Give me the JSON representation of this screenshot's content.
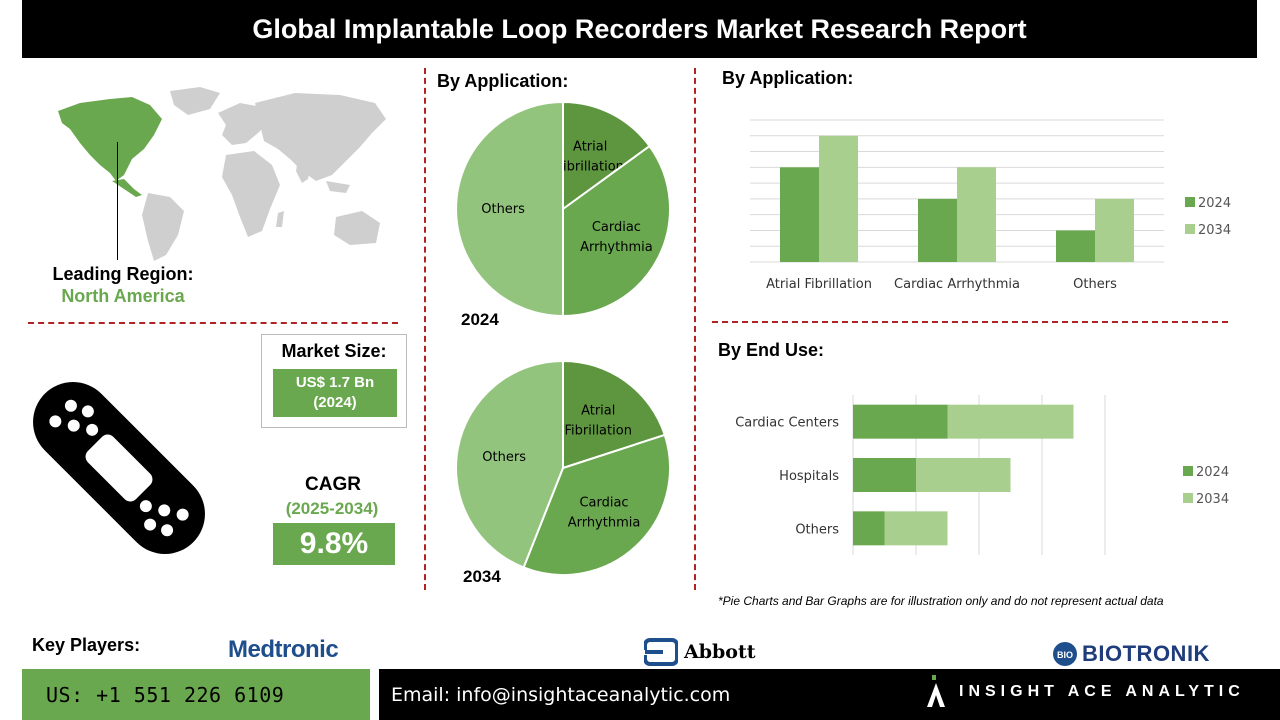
{
  "title": "Global Implantable Loop Recorders Market Research Report",
  "region": {
    "label": "Leading Region:",
    "name": "North America"
  },
  "market_size": {
    "title": "Market Size:",
    "value": "US$ 1.7 Bn",
    "year": "(2024)"
  },
  "cagr": {
    "label": "CAGR",
    "period": "(2025-2034)",
    "value": "9.8%"
  },
  "pie_section_title": "By Application:",
  "bar_app_title": "By Application:",
  "bar_enduse_title": "By End Use:",
  "disclaimer": "*Pie Charts and Bar Graphs are for illustration only and do not represent actual data",
  "footer": {
    "key_players_label": "Key Players:",
    "players": [
      "Medtronic",
      "Abbott",
      "BIOTRONIK"
    ],
    "phone": "US: +1 551 226 6109",
    "email": "Email: info@insightaceanalytic.com",
    "brand": "INSIGHT ACE ANALYTIC"
  },
  "colors": {
    "dark_green": "#5e9640",
    "mid_green": "#6aa84f",
    "light_green": "#a9cf8e",
    "pie_light": "#93c47d"
  },
  "chart_data": [
    {
      "type": "pie",
      "title": "By Application:",
      "year": "2024",
      "labels": [
        "Atrial Fibrillation",
        "Cardiac Arrhythmia",
        "Others"
      ],
      "values": [
        15,
        35,
        50
      ]
    },
    {
      "type": "pie",
      "year": "2034",
      "labels": [
        "Atrial Fibrillation",
        "Cardiac Arrhythmia",
        "Others"
      ],
      "values": [
        20,
        36,
        44
      ]
    },
    {
      "type": "bar",
      "title": "By Application:",
      "categories": [
        "Atrial Fibrillation",
        "Cardiac Arrhythmia",
        "Others"
      ],
      "series": [
        {
          "name": "2024",
          "values": [
            6,
            4,
            2
          ]
        },
        {
          "name": "2034",
          "values": [
            8,
            6,
            4
          ]
        }
      ],
      "ylim": [
        0,
        9
      ],
      "grid": true,
      "legend": "right"
    },
    {
      "type": "bar",
      "orientation": "horizontal",
      "stacked": true,
      "title": "By End Use:",
      "categories": [
        "Cardiac Centers",
        "Hospitals",
        "Others"
      ],
      "series": [
        {
          "name": "2024",
          "values": [
            3,
            2,
            1
          ]
        },
        {
          "name": "2034",
          "values": [
            4,
            3,
            2
          ]
        }
      ],
      "xlim": [
        0,
        8
      ],
      "grid": true,
      "legend": "right"
    }
  ]
}
